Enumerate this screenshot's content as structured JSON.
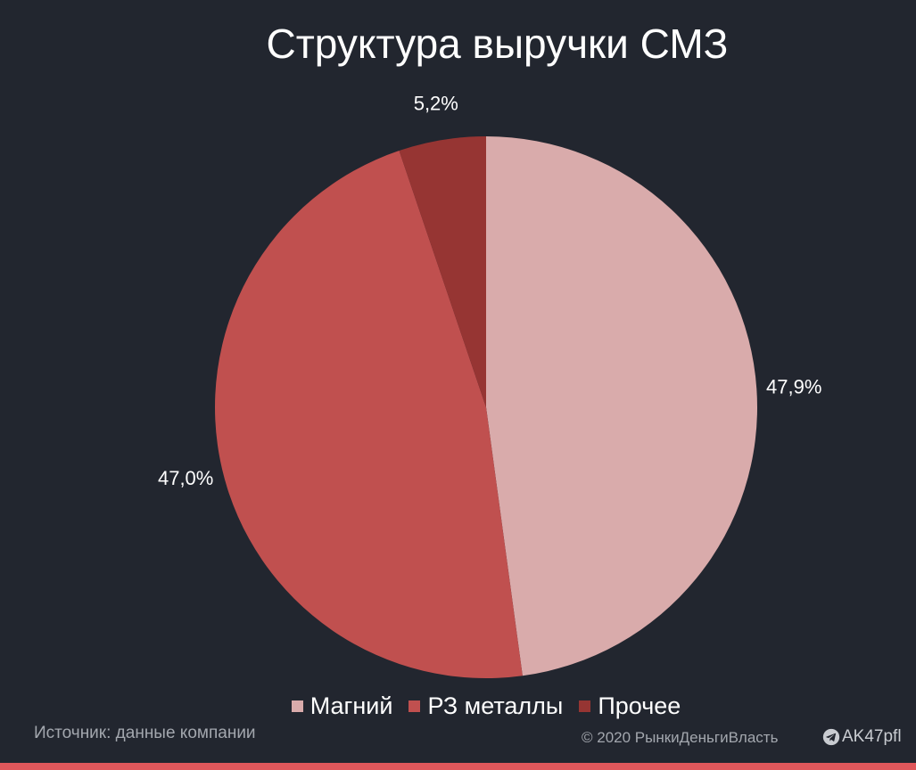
{
  "chart_data": {
    "type": "pie",
    "title": "Структура выручки СМЗ",
    "slices": [
      {
        "label": "Магний",
        "value": 47.9,
        "display": "47,9%",
        "color": "#d9abab"
      },
      {
        "label": "РЗ металлы",
        "value": 47.0,
        "display": "47,0%",
        "color": "#c0504f"
      },
      {
        "label": "Прочее",
        "value": 5.2,
        "display": "5,2%",
        "color": "#963533"
      }
    ],
    "legend_position": "bottom"
  },
  "footer": {
    "source": "Источник: данные компании",
    "copyright": "© 2020  РынкиДеньгиВласть",
    "telegram": "AK47pfl"
  },
  "colors": {
    "background": "#22262f",
    "accent_bar": "#e0575b"
  }
}
